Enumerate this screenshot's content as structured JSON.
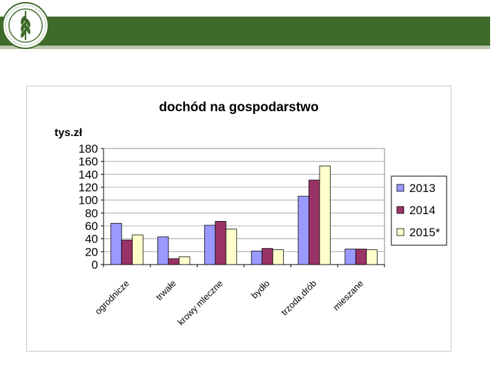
{
  "colors": {
    "header": "#3f6b2a",
    "accent_line": "#b9c7ae",
    "s2013": "#9999ff",
    "s2014": "#993366",
    "s2015": "#ffffcc"
  },
  "chart_data": {
    "type": "bar",
    "title": "dochód na gospodarstwo",
    "ylabel": "tys.zł",
    "xlabel": "",
    "ylim": [
      0,
      180
    ],
    "yticks": [
      0,
      20,
      40,
      60,
      80,
      100,
      120,
      140,
      160,
      180
    ],
    "categories": [
      "ogrodnicze",
      "trwałe",
      "krowy mleczne",
      "bydło",
      "trzoda,drób",
      "mieszane"
    ],
    "series": [
      {
        "name": "2013",
        "color": "#9999ff",
        "values": [
          64,
          43,
          61,
          21,
          106,
          24
        ]
      },
      {
        "name": "2014",
        "color": "#993366",
        "values": [
          38,
          9,
          67,
          25,
          131,
          24
        ]
      },
      {
        "name": "2015*",
        "color": "#ffffcc",
        "values": [
          46,
          12,
          55,
          23,
          153,
          23
        ]
      }
    ],
    "grid": true,
    "legend_position": "right"
  }
}
